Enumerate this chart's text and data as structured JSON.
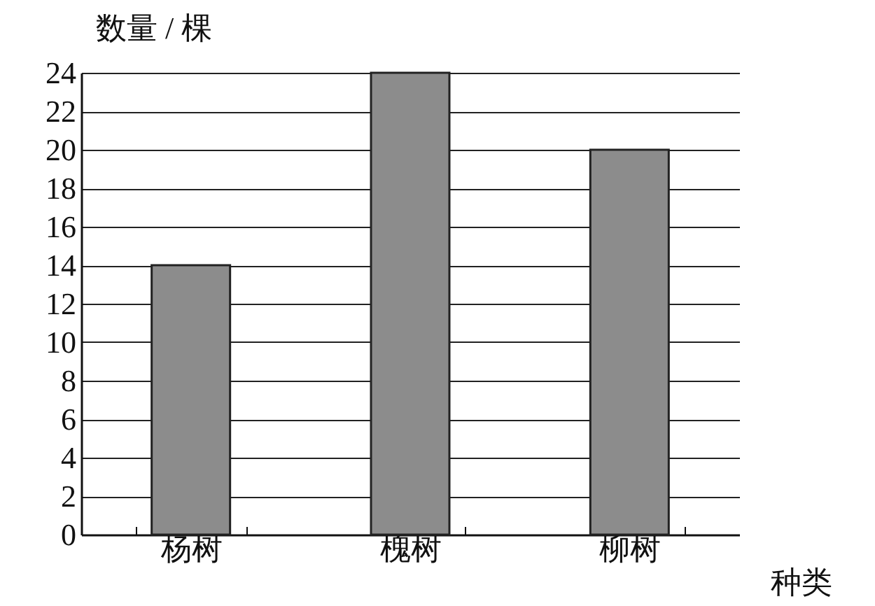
{
  "chart_data": {
    "type": "bar",
    "xlabel": "种类",
    "ylabel": "数量 / 棵",
    "categories": [
      "杨树",
      "槐树",
      "柳树"
    ],
    "values": [
      14,
      24,
      20
    ],
    "color": "#8c8c8c",
    "ylim": [
      0,
      24
    ],
    "yticks": [
      0,
      2,
      4,
      6,
      8,
      10,
      12,
      14,
      16,
      18,
      20,
      22,
      24
    ],
    "grid": "y"
  }
}
